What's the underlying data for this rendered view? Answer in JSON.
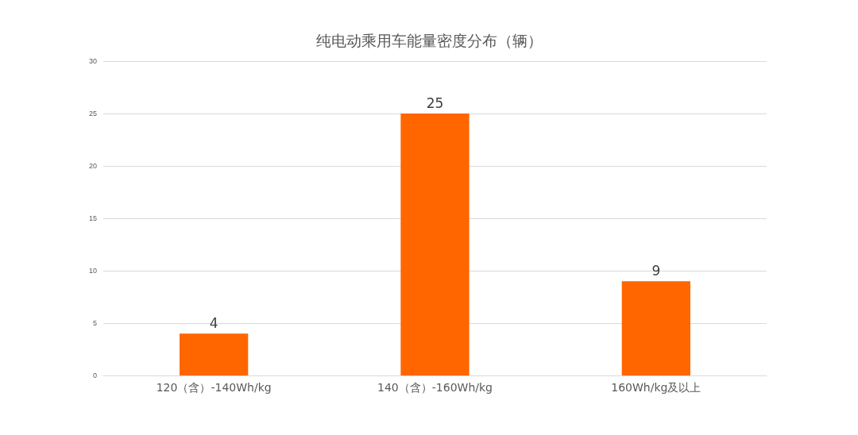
{
  "chart_data": {
    "type": "bar",
    "title": "纯电动乘用车能量密度分布（辆）",
    "categories": [
      "120（含）-140Wh/kg",
      "140（含）-160Wh/kg",
      "160Wh/kg及以上"
    ],
    "values": [
      4,
      25,
      9
    ],
    "color": "#ff6600",
    "ylim": [
      0,
      30
    ],
    "yticks": [
      0,
      5,
      10,
      15,
      20,
      25,
      30
    ],
    "grid": "y",
    "data_labels": true
  }
}
